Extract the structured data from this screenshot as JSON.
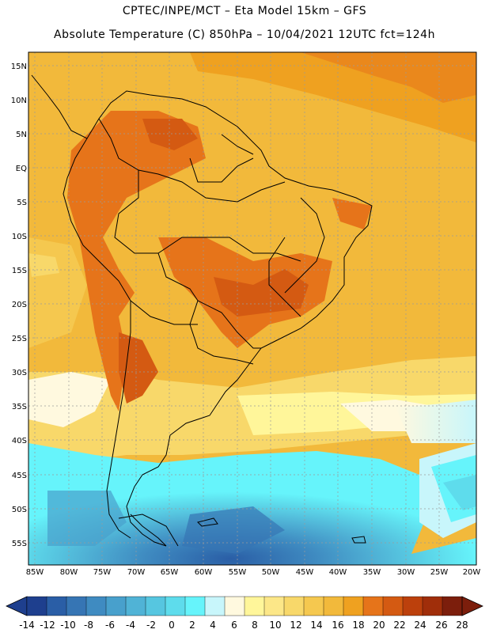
{
  "header": {
    "line1": "CPTEC/INPE/MCT –  Eta Model 15km – GFS",
    "line2": "Absolute Temperature (C) 850hPa – 10/04/2021 12UTC fct=124h"
  },
  "map": {
    "lat_labels": [
      "15N",
      "10N",
      "5N",
      "EQ",
      "5S",
      "10S",
      "15S",
      "20S",
      "25S",
      "30S",
      "35S",
      "40S",
      "45S",
      "50S",
      "55S"
    ],
    "lon_labels": [
      "85W",
      "80W",
      "75W",
      "70W",
      "65W",
      "60W",
      "55W",
      "50W",
      "45W",
      "40W",
      "35W",
      "30W",
      "25W",
      "20W"
    ]
  },
  "colorbar": {
    "labels": [
      "-14",
      "-12",
      "-10",
      "-8",
      "-6",
      "-4",
      "-2",
      "0",
      "2",
      "4",
      "6",
      "8",
      "10",
      "12",
      "14",
      "16",
      "18",
      "20",
      "22",
      "24",
      "26",
      "28"
    ],
    "colors": [
      "#1e3f8e",
      "#2a5ea6",
      "#3675b4",
      "#3f8bc1",
      "#48a0cc",
      "#50b3d6",
      "#56c6e0",
      "#5edcec",
      "#66f4fb",
      "#c8f6fb",
      "#fff9df",
      "#fff69a",
      "#fce788",
      "#f8d86a",
      "#f5c84f",
      "#f2b93b",
      "#efa120",
      "#e6741a",
      "#d45a12",
      "#bc400c",
      "#a02e0a",
      "#7c1e0c"
    ]
  }
}
